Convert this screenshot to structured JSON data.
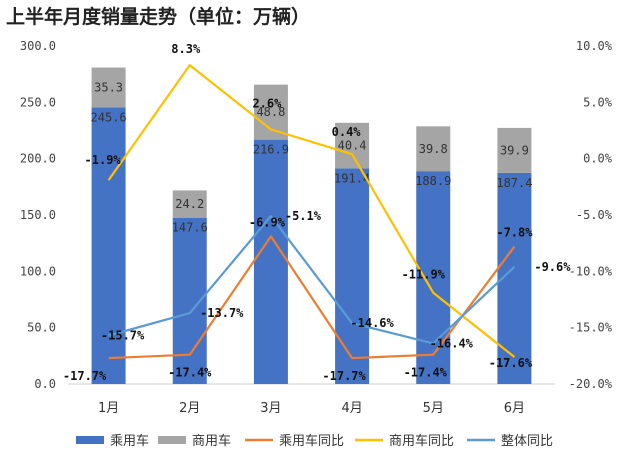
{
  "title": "上半年月度销量走势（单位：万辆）",
  "colors": {
    "passenger": "#4472C4",
    "commercial": "#A5A5A5",
    "passenger_yoy": "#ED7D31",
    "commercial_yoy": "#FFC000",
    "total_yoy": "#5B9BD5"
  },
  "chart_data": {
    "type": "bar",
    "stacked": true,
    "categories": [
      "1月",
      "2月",
      "3月",
      "4月",
      "5月",
      "6月"
    ],
    "series": [
      {
        "name": "乘用车",
        "type": "bar",
        "axis": "left",
        "values": [
          245.6,
          147.6,
          216.9,
          191.4,
          188.9,
          187.4
        ],
        "labels": [
          "245.6",
          "147.6",
          "216.9",
          "191.4",
          "188.9",
          "187.4"
        ]
      },
      {
        "name": "商用车",
        "type": "bar",
        "axis": "left",
        "values": [
          35.3,
          24.2,
          48.8,
          40.4,
          39.8,
          39.9
        ],
        "labels": [
          "35.3",
          "24.2",
          "48.8",
          "40.4",
          "39.8",
          "39.9"
        ]
      },
      {
        "name": "乘用车同比",
        "type": "line",
        "axis": "right",
        "values": [
          -17.7,
          -17.4,
          -6.9,
          -17.7,
          -17.4,
          -7.8
        ],
        "labels": [
          "-17.7%",
          "-17.4%",
          "-6.9%",
          "-17.7%",
          "-17.4%",
          "-7.8%"
        ]
      },
      {
        "name": "商用车同比",
        "type": "line",
        "axis": "right",
        "values": [
          -1.9,
          8.3,
          2.6,
          0.4,
          -11.9,
          -17.6
        ],
        "labels": [
          "-1.9%",
          "8.3%",
          "2.6%",
          "0.4%",
          "-11.9%",
          "-17.6%"
        ]
      },
      {
        "name": "整体同比",
        "type": "line",
        "axis": "right",
        "values": [
          -15.7,
          -13.7,
          -5.1,
          -14.6,
          -16.4,
          -9.6
        ],
        "labels": [
          "-15.7%",
          "-13.7%",
          "-5.1%",
          "-14.6%",
          "-16.4%",
          "-9.6%"
        ]
      }
    ],
    "left_axis": {
      "range": [
        0,
        300
      ],
      "ticks": [
        "0.0",
        "50.0",
        "100.0",
        "150.0",
        "200.0",
        "250.0",
        "300.0"
      ]
    },
    "right_axis": {
      "range": [
        -20,
        10
      ],
      "ticks": [
        "-20.0%",
        "-15.0%",
        "-10.0%",
        "-5.0%",
        "0.0%",
        "5.0%",
        "10.0%"
      ]
    },
    "grid": false,
    "legend": "bottom"
  }
}
